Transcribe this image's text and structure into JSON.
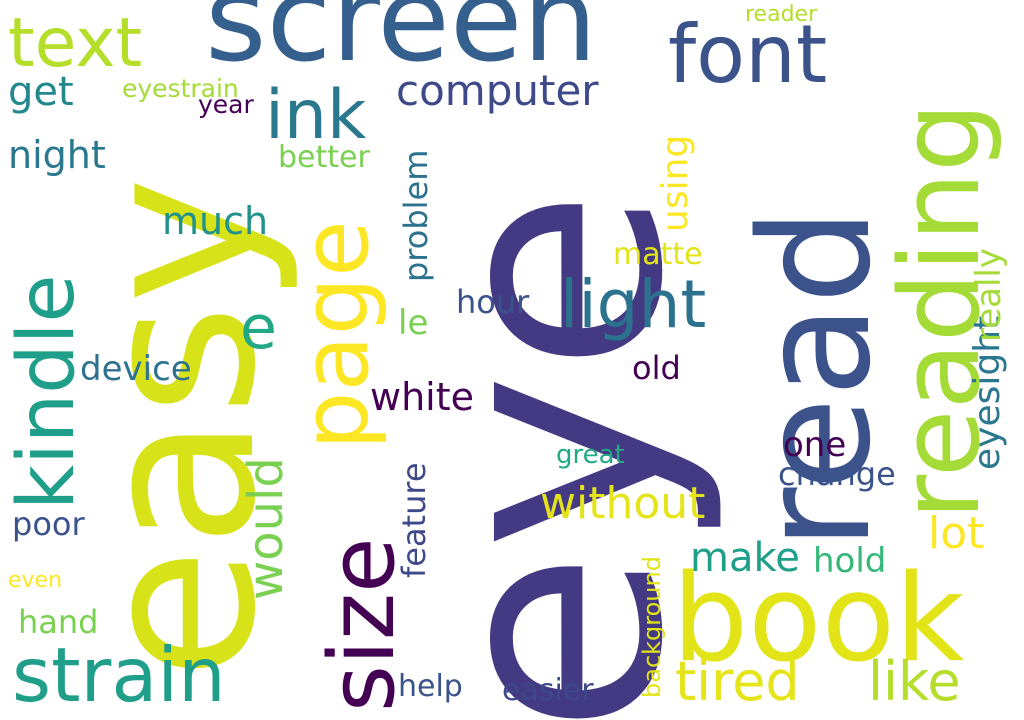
{
  "words": {
    "eye": {
      "text": "eye",
      "color": "#443983"
    },
    "easy": {
      "text": "easy",
      "color": "#d8e219"
    },
    "screen": {
      "text": "screen",
      "color": "#355f8d"
    },
    "read": {
      "text": "read",
      "color": "#3b528b"
    },
    "reading": {
      "text": "reading",
      "color": "#a5db36"
    },
    "book": {
      "text": "book",
      "color": "#e2e418"
    },
    "font": {
      "text": "font",
      "color": "#3b528b"
    },
    "text": {
      "text": "text",
      "color": "#b5de2b"
    },
    "size": {
      "text": "size",
      "color": "#440154"
    },
    "page": {
      "text": "page",
      "color": "#fde725"
    },
    "strain": {
      "text": "strain",
      "color": "#1f9e89"
    },
    "kindle": {
      "text": "kindle",
      "color": "#1f9e89"
    },
    "ink": {
      "text": "ink",
      "color": "#2a788e"
    },
    "tired": {
      "text": "tired",
      "color": "#e5e419"
    },
    "like": {
      "text": "like",
      "color": "#b5de2b"
    },
    "light": {
      "text": "light",
      "color": "#2c728e"
    },
    "computer": {
      "text": "computer",
      "color": "#3e4989"
    },
    "e": {
      "text": "e",
      "color": "#22a884"
    },
    "would": {
      "text": "would",
      "color": "#7ad151"
    },
    "without": {
      "text": "without",
      "color": "#e5e419"
    },
    "make": {
      "text": "make",
      "color": "#1f9e89"
    },
    "lot": {
      "text": "lot",
      "color": "#fde725"
    },
    "eyesight": {
      "text": "eyesight",
      "color": "#2a788e"
    },
    "really": {
      "text": "really",
      "color": "#a5db36"
    },
    "white": {
      "text": "white",
      "color": "#440154"
    },
    "much": {
      "text": "much",
      "color": "#21918c"
    },
    "night": {
      "text": "night",
      "color": "#2a788e"
    },
    "get": {
      "text": "get",
      "color": "#23888e"
    },
    "one": {
      "text": "one",
      "color": "#440154"
    },
    "change": {
      "text": "change",
      "color": "#3b528b"
    },
    "device": {
      "text": "device",
      "color": "#2c728e"
    },
    "poor": {
      "text": "poor",
      "color": "#3b528b"
    },
    "hand": {
      "text": "hand",
      "color": "#7ad151"
    },
    "hold": {
      "text": "hold",
      "color": "#35b779"
    },
    "better": {
      "text": "better",
      "color": "#7ad151"
    },
    "using": {
      "text": "using",
      "color": "#fde725"
    },
    "problem": {
      "text": "problem",
      "color": "#2c728e"
    },
    "feature": {
      "text": "feature",
      "color": "#3e4989"
    },
    "hour": {
      "text": "hour",
      "color": "#3b528b"
    },
    "old": {
      "text": "old",
      "color": "#440154"
    },
    "matte": {
      "text": "matte",
      "color": "#e2e418"
    },
    "le": {
      "text": "le",
      "color": "#7ad151"
    },
    "help": {
      "text": "help",
      "color": "#3b528b"
    },
    "easier": {
      "text": "easier",
      "color": "#3e4989"
    },
    "background": {
      "text": "background",
      "color": "#e2e418"
    },
    "great": {
      "text": "great",
      "color": "#22a884"
    },
    "eyestrain": {
      "text": "eyestrain",
      "color": "#a5db36"
    },
    "year": {
      "text": "year",
      "color": "#440154"
    },
    "reader": {
      "text": "reader",
      "color": "#b5de2b"
    },
    "even": {
      "text": "even",
      "color": "#fde725"
    }
  }
}
